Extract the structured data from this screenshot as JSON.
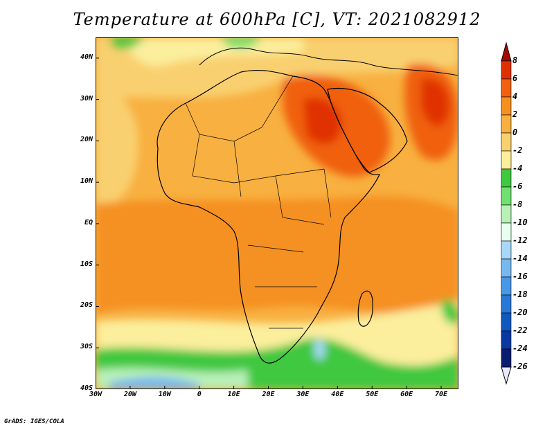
{
  "title": "Temperature at 600hPa [C], VT: 2021082912",
  "credit": "GrADS: IGES/COLA",
  "map": {
    "lat_labels": [
      "40N",
      "30N",
      "20N",
      "10N",
      "EQ",
      "10S",
      "20S",
      "30S",
      "40S"
    ],
    "lon_labels": [
      "30W",
      "20W",
      "10W",
      "0",
      "10E",
      "20E",
      "30E",
      "40E",
      "50E",
      "60E",
      "70E"
    ],
    "lat_range": [
      -40,
      45
    ],
    "lon_range": [
      -30,
      75
    ]
  },
  "colorbar": {
    "labels": [
      "8",
      "6",
      "4",
      "2",
      "0",
      "-2",
      "-4",
      "-6",
      "-8",
      "-10",
      "-12",
      "-14",
      "-16",
      "-18",
      "-20",
      "-22",
      "-24",
      "-26"
    ],
    "colors": [
      "#a50a00",
      "#e03000",
      "#f06010",
      "#f59020",
      "#f8b040",
      "#f9d070",
      "#fbee9c",
      "#40c840",
      "#70e070",
      "#b8f0b8",
      "#e8fff0",
      "#a8d8f8",
      "#78b8f0",
      "#4898e8",
      "#2878d8",
      "#1058c0",
      "#0838a0",
      "#081c70",
      "#e8e8ff"
    ]
  }
}
